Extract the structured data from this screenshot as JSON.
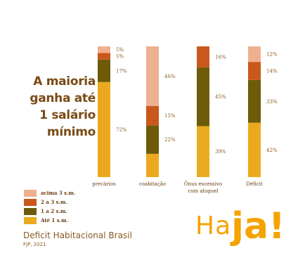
{
  "headline": [
    "A maioria",
    "ganha até",
    "1 salário",
    "mínimo"
  ],
  "source": {
    "title": "Deficit Habitacional Brasil",
    "subtitle": "FJP, 2021"
  },
  "logo": {
    "part1": "Ha",
    "part2": "ja!"
  },
  "colors": {
    "acima_3": "#eeb08e",
    "de_2_a_3": "#c8581b",
    "de_1_a_2": "#6e5b09",
    "ate_1": "#ebaa1e"
  },
  "chart_data": {
    "type": "bar",
    "stacked": true,
    "normalized": true,
    "title": "",
    "xlabel": "",
    "ylabel": "",
    "ylim": [
      0,
      100
    ],
    "grid": false,
    "legend_position": "bottom-left",
    "categories": [
      {
        "label": [
          "precários"
        ]
      },
      {
        "label": [
          "coabitação"
        ]
      },
      {
        "label": [
          "Ônus excessivo",
          "com aluguel"
        ]
      },
      {
        "label": [
          "Déficit"
        ]
      }
    ],
    "series": [
      {
        "name": "Até 1 s.m.",
        "color": "#ebaa1e",
        "values": [
          72,
          18,
          39,
          42
        ],
        "labels": [
          "72%",
          "",
          "39%",
          "42%"
        ]
      },
      {
        "name": "1 a 2 s.m.",
        "color": "#6e5b09",
        "values": [
          17,
          22,
          45,
          33
        ],
        "labels": [
          "17%",
          "22%",
          "45%",
          "33%"
        ]
      },
      {
        "name": "2 a 3 s.m.",
        "color": "#c8581b",
        "values": [
          5,
          15,
          16,
          14
        ],
        "labels": [
          "5%",
          "15%",
          "16%",
          "14%"
        ]
      },
      {
        "name": "acima 3 s.m.",
        "color": "#eeb08e",
        "values": [
          5,
          46,
          0,
          12
        ],
        "labels": [
          "5%",
          "46%",
          "",
          "12%"
        ]
      }
    ],
    "legend": [
      {
        "name": "acima 3 s.m.",
        "color": "#eeb08e"
      },
      {
        "name": "2 a 3 s.m.",
        "color": "#c8581b"
      },
      {
        "name": "1 a 2 s.m.",
        "color": "#6e5b09"
      },
      {
        "name": "Até 1 s.m.",
        "color": "#ebaa1e"
      }
    ]
  }
}
